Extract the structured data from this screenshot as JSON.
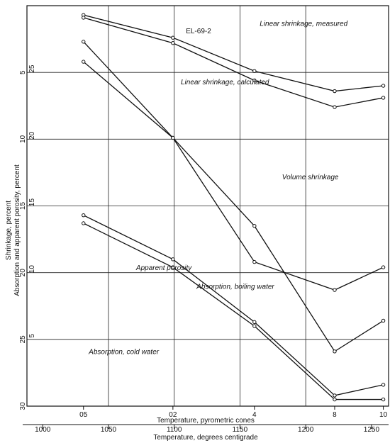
{
  "chart_data": {
    "type": "line",
    "title": "EL-69-2",
    "x_primary_label": "Temperature, pyrometric cones",
    "x_primary_ticks": [
      {
        "label": "05",
        "temp": 1031
      },
      {
        "label": "02",
        "temp": 1099
      },
      {
        "label": "4",
        "temp": 1161
      },
      {
        "label": "8",
        "temp": 1222
      },
      {
        "label": "10",
        "temp": 1259
      }
    ],
    "x_secondary_label": "Temperature, degrees centigrade",
    "x_secondary_ticks": [
      1000,
      1050,
      1100,
      1150,
      1200,
      1250
    ],
    "x_range": [
      988,
      1263
    ],
    "y_left_label": "Shrinkage, percent",
    "y_left_ticks": [
      "5",
      "10",
      "15",
      "20",
      "25",
      "30"
    ],
    "y_right_label": "Absorption and apparent porosity, percent",
    "y_right_ticks": [
      "25",
      "20",
      "15",
      "10",
      "5"
    ],
    "y_range": [
      0,
      30
    ],
    "grid": true,
    "series": [
      {
        "name": "Linear shrinkage, measured",
        "x": [
          1031,
          1099,
          1161,
          1222,
          1259
        ],
        "y": [
          0.7,
          2.4,
          4.9,
          6.4,
          6.0
        ]
      },
      {
        "name": "Linear shrinkage, calculated",
        "x": [
          1031,
          1099,
          1161,
          1222,
          1259
        ],
        "y": [
          0.9,
          2.8,
          5.6,
          7.6,
          6.9
        ]
      },
      {
        "name": "Volume shrinkage",
        "x": [
          1031,
          1099,
          1161,
          1222,
          1259
        ],
        "y": [
          2.7,
          9.9,
          16.5,
          25.9,
          23.6
        ]
      },
      {
        "name": "Apparent porosity",
        "x": [
          1031,
          1099,
          1161,
          1222,
          1259
        ],
        "y": [
          4.2,
          9.9,
          19.2,
          21.3,
          19.6
        ]
      },
      {
        "name": "Absorption, boiling water",
        "x": [
          1031,
          1099,
          1161,
          1222,
          1259
        ],
        "y": [
          15.7,
          19.0,
          23.7,
          29.2,
          28.4
        ]
      },
      {
        "name": "Absorption, cold water",
        "x": [
          1031,
          1099,
          1161,
          1222,
          1259
        ],
        "y": [
          16.3,
          19.6,
          24.0,
          29.5,
          29.5
        ]
      }
    ],
    "annotations": [
      {
        "text": "Linear shrinkage, measured",
        "x": 1165,
        "y": 1.5
      },
      {
        "text": "Linear shrinkage, calculated",
        "x": 1105,
        "y": 5.9
      },
      {
        "text": "Volume shrinkage",
        "x": 1182,
        "y": 13.0
      },
      {
        "text": "Apparent porosity",
        "x": 1071,
        "y": 19.8
      },
      {
        "text": "Absorption, boiling water",
        "x": 1117,
        "y": 21.2
      },
      {
        "text": "Absorption, cold water",
        "x": 1035,
        "y": 26.1
      }
    ]
  }
}
